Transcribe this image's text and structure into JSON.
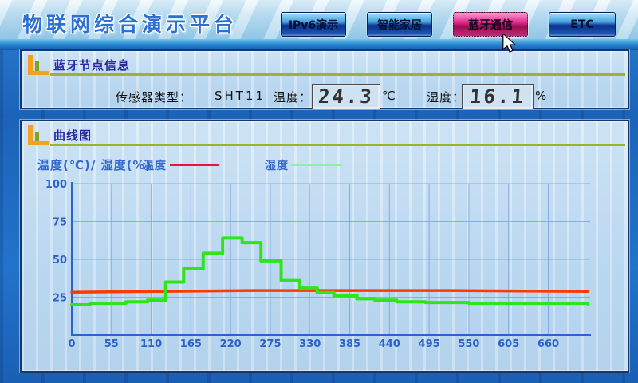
{
  "header": {
    "title": "物联网综合演示平台",
    "tabs": [
      {
        "label": "IPv6演示",
        "active": false
      },
      {
        "label": "智能家居",
        "active": false
      },
      {
        "label": "蓝牙通信",
        "active": true
      },
      {
        "label": "ETC",
        "active": false
      }
    ],
    "active_tab_color": "#d6147e"
  },
  "node_panel": {
    "title": "蓝牙节点信息",
    "sensor_type_label": "传感器类型：",
    "sensor_type_value": "SHT11",
    "temp_label": "温度：",
    "temp_value": "24.3",
    "temp_unit": "℃",
    "hum_label": "湿度：",
    "hum_value": "16.1",
    "hum_unit": "%"
  },
  "chart_panel": {
    "title": "曲线图",
    "axis_title": "温度(℃)/ 湿度(%)",
    "legend": [
      {
        "label": "温度",
        "color": "#e81438"
      },
      {
        "label": "湿度",
        "color": "#8cf2a2"
      }
    ],
    "accent": {
      "header_underline": "#97b52e",
      "header_icon_orange": "#f5a01e",
      "header_icon_green": "#7fa522"
    }
  },
  "chart_data": {
    "type": "line",
    "title": "曲线图",
    "xlabel": "",
    "ylabel": "温度(℃)/ 湿度(%)",
    "xlim": [
      0,
      718
    ],
    "ylim": [
      0,
      105
    ],
    "grid": true,
    "legend_position": "top",
    "x_ticks": [
      0,
      55,
      110,
      165,
      220,
      275,
      330,
      385,
      440,
      495,
      550,
      605,
      660
    ],
    "y_ticks": [
      25,
      50,
      75,
      100
    ],
    "series": [
      {
        "name": "温度",
        "color": "#ff3a00",
        "width": 3.5,
        "interpolation": "linear",
        "points": [
          [
            0,
            28.3
          ],
          [
            250,
            29.4
          ],
          [
            520,
            29.4
          ],
          [
            715,
            28.8
          ]
        ]
      },
      {
        "name": "湿度",
        "color": "#30e41a",
        "width": 4,
        "interpolation": "step-after",
        "points": [
          [
            0,
            20
          ],
          [
            25,
            21
          ],
          [
            75,
            22
          ],
          [
            105,
            23
          ],
          [
            130,
            35
          ],
          [
            155,
            44
          ],
          [
            182,
            54
          ],
          [
            209,
            64
          ],
          [
            236,
            61
          ],
          [
            262,
            49
          ],
          [
            290,
            36
          ],
          [
            316,
            31
          ],
          [
            340,
            28
          ],
          [
            363,
            26
          ],
          [
            395,
            24
          ],
          [
            420,
            23
          ],
          [
            450,
            22
          ],
          [
            490,
            21.5
          ],
          [
            550,
            21
          ],
          [
            715,
            20.5
          ]
        ]
      }
    ]
  }
}
